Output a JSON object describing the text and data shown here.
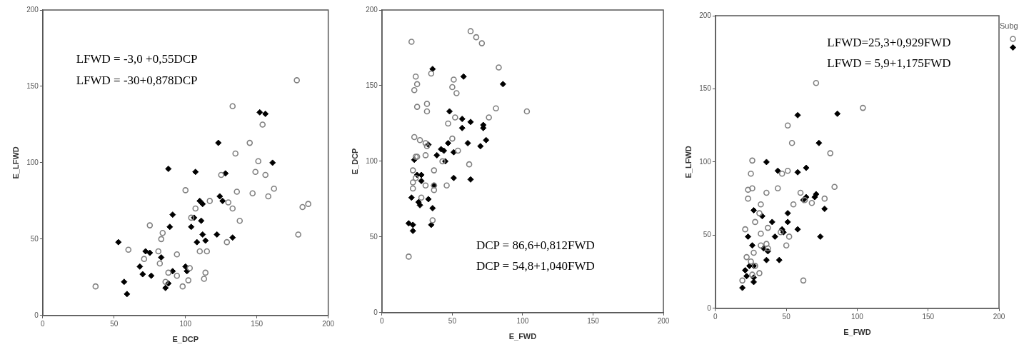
{
  "chart_data": [
    {
      "type": "scatter",
      "xlabel": "E_DCP",
      "ylabel": "E_LFWD",
      "xlim": [
        0,
        200
      ],
      "ylim": [
        0,
        200
      ],
      "xticks": [
        0,
        50,
        100,
        150,
        200
      ],
      "yticks": [
        0,
        50,
        100,
        150,
        200
      ],
      "annotations": [
        "LFWD = -3,0 +0,55DCP",
        "LFWD = -30+0,878DCP"
      ],
      "series": [
        {
          "color": "#808080",
          "marker": "circle",
          "x": [
            178,
            133,
            154,
            145,
            135,
            151,
            149,
            156,
            125,
            162,
            100,
            136,
            147,
            158,
            117,
            130,
            107,
            133,
            182,
            186,
            104,
            138,
            179,
            75,
            84,
            83,
            129,
            60,
            81,
            110,
            115,
            94,
            71,
            82,
            103,
            88,
            114,
            94,
            86,
            102,
            113,
            98,
            37
          ],
          "values": [
            154,
            137,
            125,
            113,
            106,
            101,
            94,
            92,
            92,
            83,
            82,
            81,
            80,
            78,
            75,
            74,
            70,
            70,
            71,
            73,
            64,
            62,
            53,
            59,
            54,
            50,
            48,
            43,
            42,
            42,
            42,
            40,
            37,
            34,
            31,
            28,
            28,
            26,
            22,
            23,
            24,
            19,
            19
          ]
        },
        {
          "color": "#000000",
          "marker": "diamond",
          "x": [
            152,
            156,
            123,
            161,
            88,
            107,
            128,
            124,
            110,
            112,
            126,
            91,
            106,
            111,
            89,
            104,
            112,
            122,
            133,
            114,
            108,
            53,
            72,
            75,
            83,
            68,
            70,
            76,
            91,
            100,
            101,
            57,
            88,
            86,
            59
          ],
          "values": [
            133,
            132,
            113,
            100,
            96,
            94,
            93,
            78,
            75,
            73,
            75,
            66,
            64,
            62,
            58,
            58,
            53,
            53,
            51,
            49,
            48,
            48,
            42,
            41,
            38,
            32,
            27,
            26,
            29,
            32,
            29,
            22,
            21,
            18,
            14
          ]
        }
      ]
    },
    {
      "type": "scatter",
      "xlabel": "E_FWD",
      "ylabel": "E_DCP",
      "xlim": [
        0,
        200
      ],
      "ylim": [
        0,
        200
      ],
      "xticks": [
        0,
        50,
        100,
        150,
        200
      ],
      "yticks": [
        0,
        50,
        100,
        150,
        200
      ],
      "annotations": [
        "DCP = 86,6+0,812FWD",
        "DCP = 54,8+1,040FWD"
      ],
      "series": [
        {
          "color": "#808080",
          "marker": "circle",
          "x": [
            63,
            67,
            71,
            21,
            83,
            35,
            24,
            25,
            51,
            50,
            23,
            53,
            81,
            25,
            32,
            32,
            103,
            52,
            76,
            47,
            23,
            50,
            27,
            31,
            32,
            54,
            31,
            24,
            25,
            43,
            62,
            22,
            37,
            24,
            22,
            22,
            31,
            46,
            37,
            37,
            28,
            36,
            19
          ],
          "values": [
            186,
            182,
            178,
            179,
            162,
            158,
            156,
            151,
            154,
            149,
            147,
            145,
            135,
            136,
            138,
            133,
            133,
            129,
            129,
            125,
            116,
            115,
            114,
            112,
            110,
            107,
            104,
            103,
            103,
            100,
            98,
            94,
            94,
            89,
            86,
            82,
            84,
            84,
            84,
            81,
            76,
            61,
            37
          ]
        },
        {
          "color": "#000000",
          "marker": "diamond",
          "x": [
            36,
            58,
            86,
            48,
            57,
            63,
            72,
            72,
            57,
            74,
            61,
            47,
            33,
            70,
            42,
            44,
            51,
            39,
            23,
            45,
            25,
            28,
            28,
            51,
            63,
            37,
            21,
            33,
            26,
            27,
            36,
            19,
            22,
            35,
            22
          ],
          "values": [
            161,
            156,
            151,
            133,
            128,
            126,
            124,
            122,
            122,
            114,
            112,
            112,
            111,
            110,
            108,
            107,
            106,
            104,
            101,
            100,
            91,
            91,
            87,
            89,
            88,
            84,
            76,
            75,
            73,
            71,
            69,
            59,
            58,
            58,
            54
          ]
        }
      ]
    },
    {
      "type": "scatter",
      "xlabel": "E_FWD",
      "ylabel": "E_LFWD",
      "xlim": [
        0,
        200
      ],
      "ylim": [
        0,
        200
      ],
      "xticks": [
        0,
        50,
        100,
        150,
        200
      ],
      "yticks": [
        0,
        50,
        100,
        150,
        200
      ],
      "legend_title": "Subg",
      "annotations": [
        "LFWD=25,3+0,929FWD",
        "LFWD = 5,9+1,175FWD"
      ],
      "series": [
        {
          "color": "#808080",
          "marker": "circle",
          "x": [
            71,
            104,
            51,
            54,
            81,
            26,
            25,
            51,
            47,
            26,
            23,
            23,
            44,
            36,
            84,
            60,
            77,
            63,
            68,
            55,
            32,
            31,
            28,
            46,
            37,
            21,
            32,
            52,
            32,
            36,
            37,
            50,
            27,
            22,
            25,
            28,
            31,
            26,
            19,
            62
          ],
          "values": [
            154,
            137,
            125,
            113,
            106,
            101,
            92,
            94,
            92,
            82,
            81,
            75,
            82,
            79,
            83,
            79,
            75,
            74,
            72,
            71,
            71,
            65,
            59,
            52,
            55,
            54,
            51,
            49,
            43,
            44,
            41,
            43,
            38,
            35,
            32,
            29,
            24,
            23,
            19,
            19
          ]
        },
        {
          "color": "#000000",
          "marker": "diamond",
          "x": [
            58,
            86,
            73,
            36,
            44,
            58,
            64,
            71,
            70,
            64,
            62,
            77,
            27,
            51,
            33,
            40,
            51,
            23,
            42,
            47,
            48,
            58,
            74,
            26,
            34,
            37,
            36,
            45,
            24,
            27,
            21,
            22,
            27,
            27,
            19
          ],
          "values": [
            132,
            133,
            113,
            100,
            94,
            93,
            96,
            78,
            76,
            76,
            74,
            68,
            67,
            65,
            63,
            59,
            59,
            49,
            49,
            54,
            52,
            54,
            49,
            43,
            41,
            39,
            33,
            33,
            29,
            29,
            26,
            22,
            21,
            18,
            14
          ]
        }
      ]
    }
  ]
}
